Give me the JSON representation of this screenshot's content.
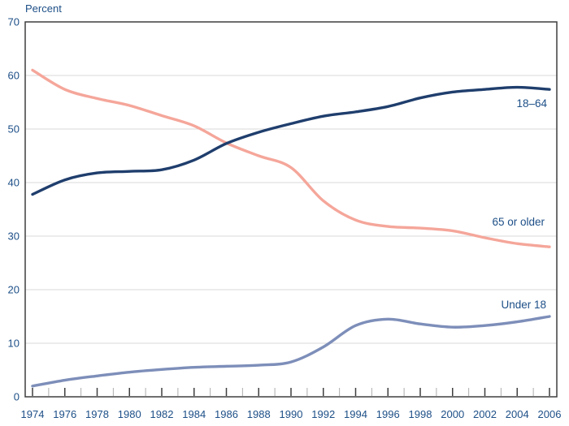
{
  "chart_data": {
    "type": "line",
    "title": "",
    "ylabel": "Percent",
    "xlabel": "",
    "ylim": [
      0,
      70
    ],
    "ytick_step": 10,
    "xlim": [
      1974,
      2006
    ],
    "xtick_minor_step": 1,
    "xtick_label_step": 2,
    "grid": "horizontal-only",
    "legend_position": "inline-right-of-lines",
    "x": [
      1974,
      1976,
      1978,
      1980,
      1982,
      1984,
      1986,
      1988,
      1990,
      1992,
      1994,
      1996,
      1998,
      2000,
      2002,
      2004,
      2006
    ],
    "series": [
      {
        "name": "65-or-older",
        "label": "65 or older",
        "color": "#f5a69a",
        "values": [
          61.0,
          57.4,
          55.7,
          54.4,
          52.5,
          50.6,
          47.4,
          45.0,
          42.8,
          36.6,
          33.0,
          31.8,
          31.5,
          31.0,
          29.7,
          28.6,
          28.0
        ]
      },
      {
        "name": "under-18",
        "label": "Under 18",
        "color": "#7d8eb9",
        "values": [
          2.0,
          3.1,
          3.9,
          4.6,
          5.1,
          5.5,
          5.7,
          5.9,
          6.5,
          9.3,
          13.3,
          14.5,
          13.6,
          13.0,
          13.3,
          14.0,
          15.0
        ]
      },
      {
        "name": "18-64",
        "label": "18–64",
        "color": "#1f3e6d",
        "values": [
          37.8,
          40.5,
          41.8,
          42.1,
          42.4,
          44.2,
          47.3,
          49.4,
          51.0,
          52.4,
          53.2,
          54.2,
          55.8,
          56.9,
          57.4,
          57.8,
          57.4
        ]
      }
    ],
    "colors": {
      "text": "#1d4f87",
      "gridline": "#d9d9d9",
      "frame": "#3f3f3f",
      "minor_tick": "#aeaeae"
    }
  }
}
